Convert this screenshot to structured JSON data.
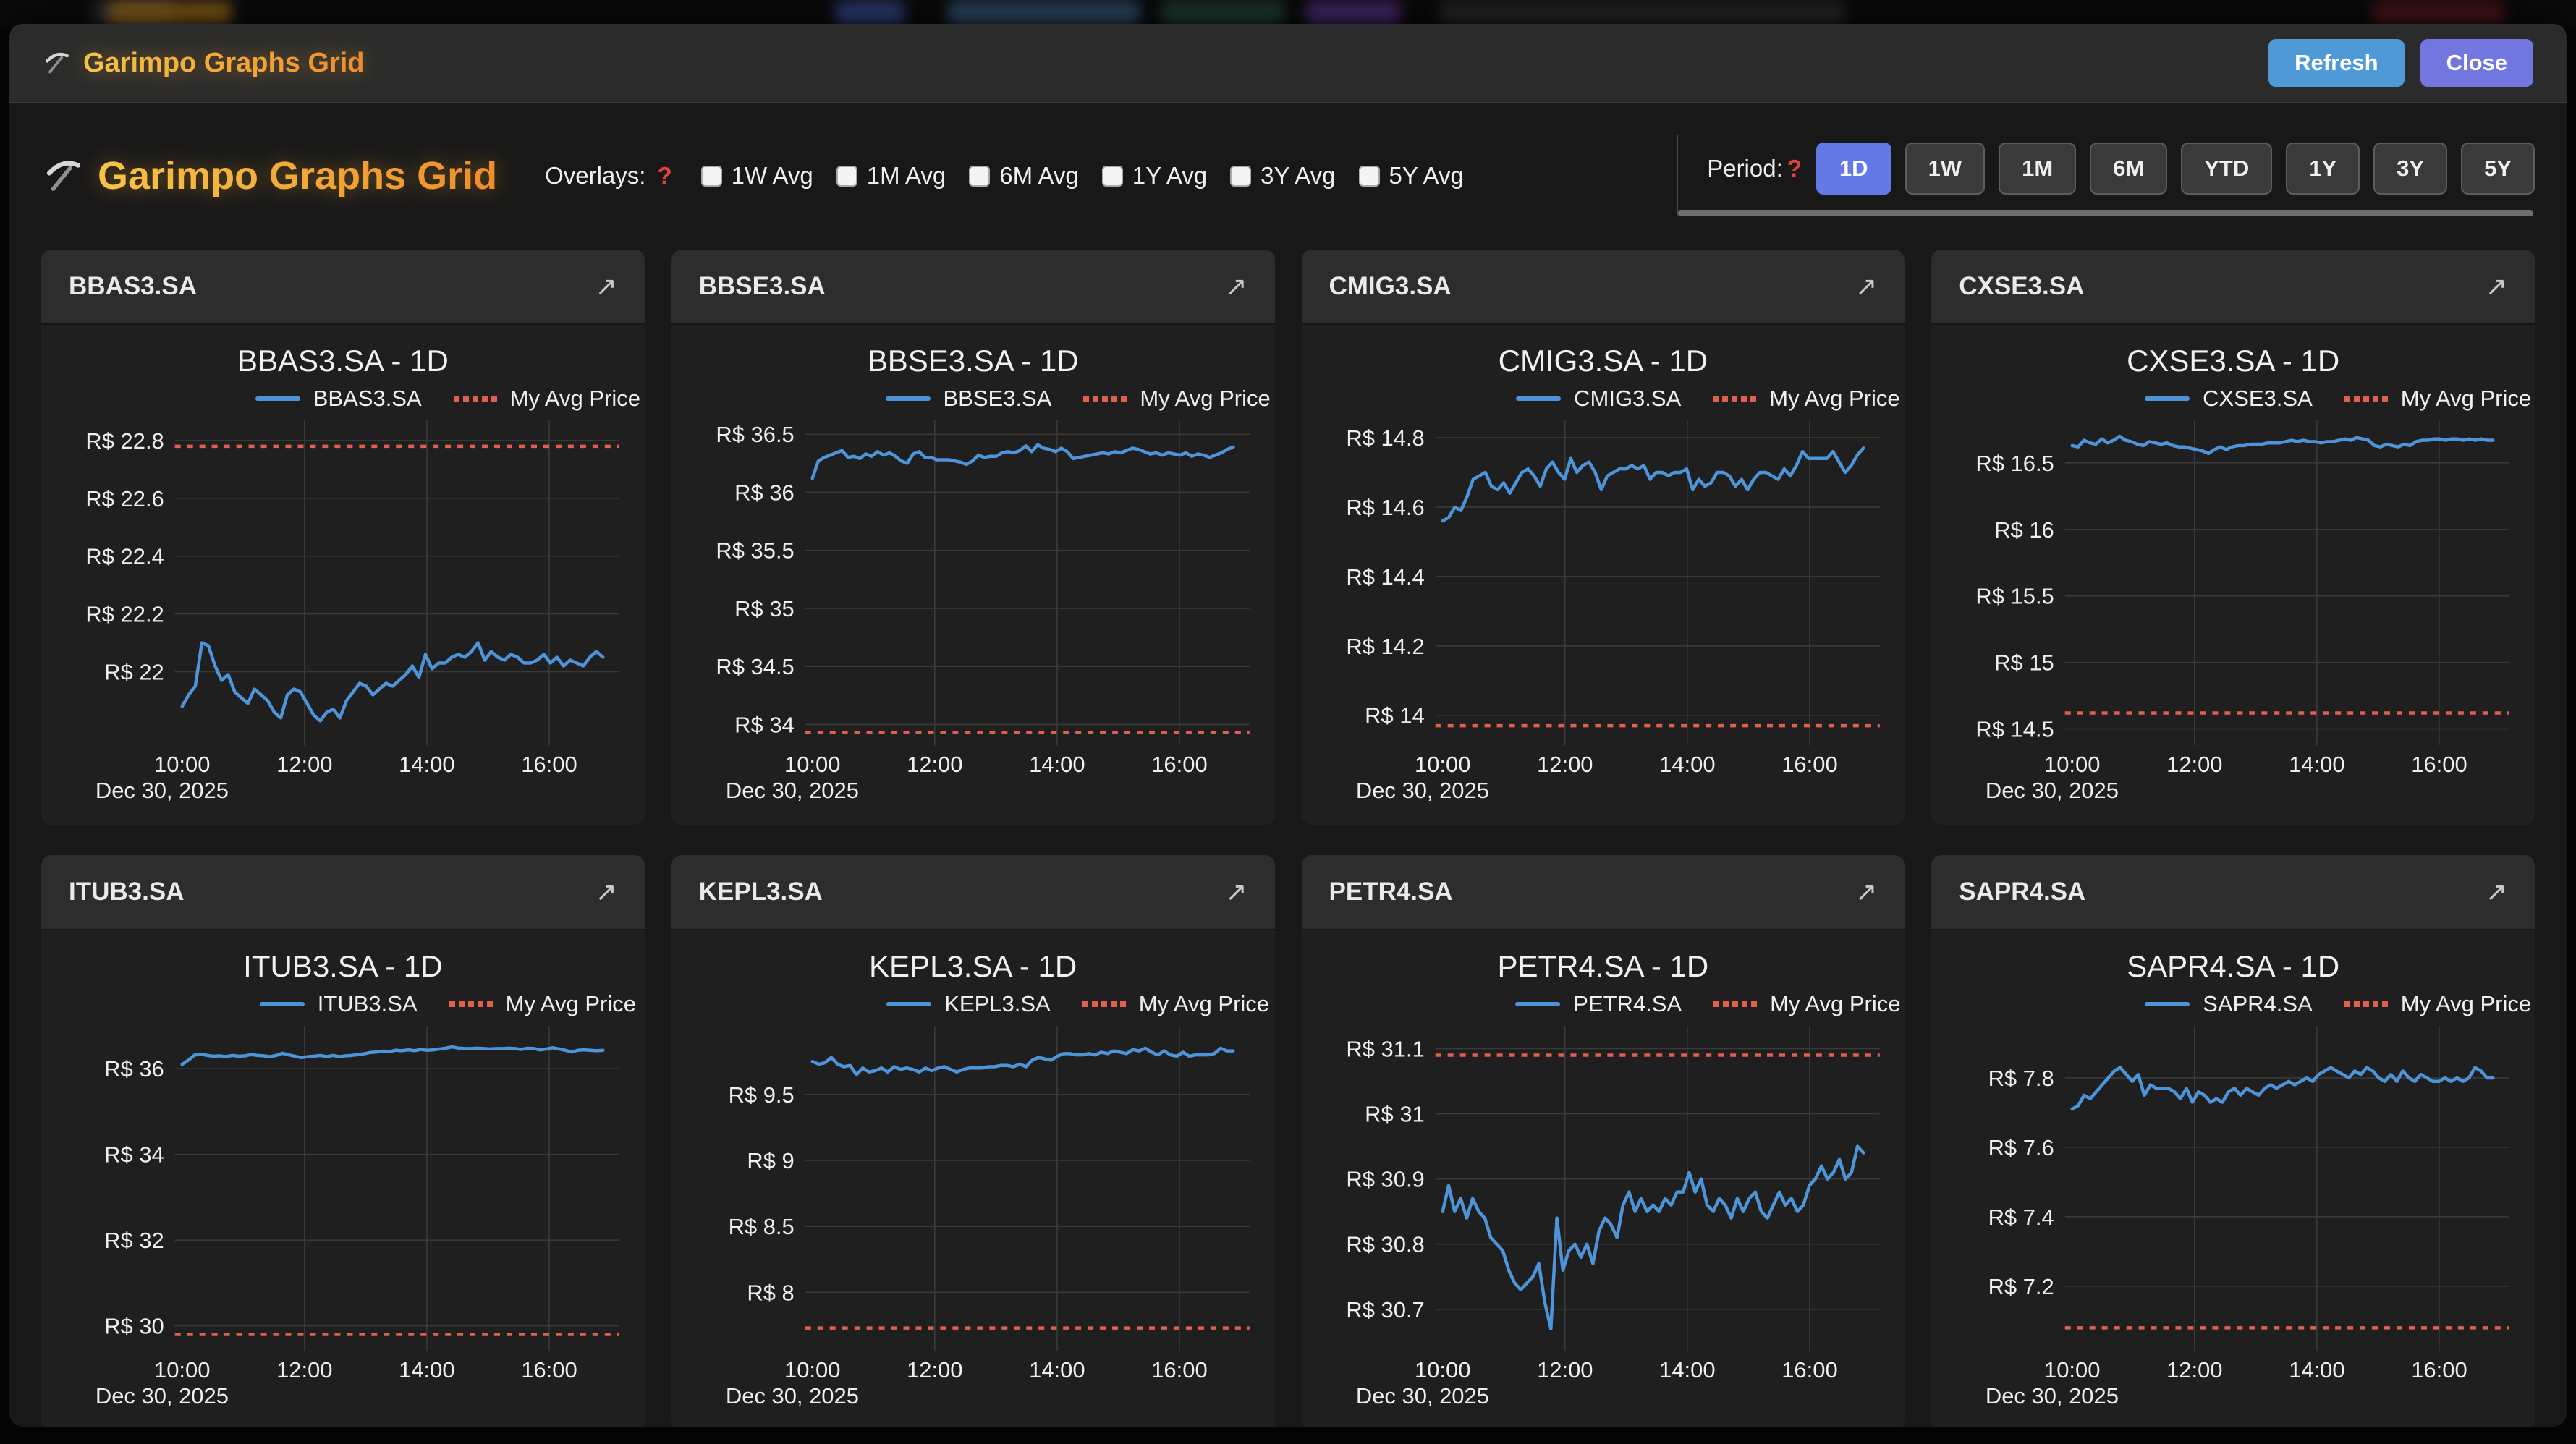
{
  "window": {
    "title": "Garimpo Graphs Grid",
    "buttons": {
      "refresh": "Refresh",
      "close": "Close"
    }
  },
  "toolbar": {
    "title": "Garimpo Graphs Grid",
    "overlays_label": "Overlays:",
    "overlays_help": "?",
    "overlays": [
      {
        "label": "1W Avg",
        "checked": false
      },
      {
        "label": "1M Avg",
        "checked": false
      },
      {
        "label": "6M Avg",
        "checked": false
      },
      {
        "label": "1Y Avg",
        "checked": false
      },
      {
        "label": "3Y Avg",
        "checked": false
      },
      {
        "label": "5Y Avg",
        "checked": false
      }
    ],
    "period_label": "Period:",
    "period_help": "?",
    "periods": [
      {
        "label": "1D",
        "active": true
      },
      {
        "label": "1W",
        "active": false
      },
      {
        "label": "1M",
        "active": false
      },
      {
        "label": "6M",
        "active": false
      },
      {
        "label": "YTD",
        "active": false
      },
      {
        "label": "1Y",
        "active": false
      },
      {
        "label": "3Y",
        "active": false
      },
      {
        "label": "5Y",
        "active": false
      }
    ]
  },
  "colors": {
    "series_blue": "#4e94d8",
    "avg_red": "#e0604d",
    "gridline": "#3a3a3a",
    "brand_orange_start": "#f6c445",
    "brand_orange_end": "#ee8d2b",
    "refresh_button": "#4f9ad6",
    "close_button": "#7276df",
    "active_period": "#6479e6"
  },
  "chart_data": [
    {
      "type": "line",
      "ticker": "BBAS3.SA",
      "title": "BBAS3.SA - 1D",
      "legend": {
        "series": "BBAS3.SA",
        "avg": "My Avg Price"
      },
      "x_ticks": [
        "10:00",
        "12:00",
        "14:00",
        "16:00"
      ],
      "x_date": "Dec 30, 2025",
      "x_range_hours": [
        10.0,
        16.88
      ],
      "y_ticks": [
        {
          "label": "R$ 22.8",
          "value": 22.8
        },
        {
          "label": "R$ 22.6",
          "value": 22.6
        },
        {
          "label": "R$ 22.4",
          "value": 22.4
        },
        {
          "label": "R$ 22.2",
          "value": 22.2
        },
        {
          "label": "R$ 22",
          "value": 22.0
        }
      ],
      "y_view": {
        "vmax": 22.87,
        "vmin": 21.765
      },
      "my_avg_price": 22.78,
      "values": [
        21.88,
        21.92,
        21.95,
        22.1,
        22.09,
        22.02,
        21.97,
        21.99,
        21.93,
        21.91,
        21.89,
        21.94,
        21.92,
        21.9,
        21.86,
        21.84,
        21.92,
        21.94,
        21.93,
        21.89,
        21.85,
        21.83,
        21.86,
        21.87,
        21.84,
        21.9,
        21.93,
        21.96,
        21.95,
        21.92,
        21.94,
        21.96,
        21.95,
        21.97,
        21.99,
        22.02,
        21.98,
        22.06,
        22.01,
        22.03,
        22.03,
        22.05,
        22.06,
        22.05,
        22.07,
        22.1,
        22.04,
        22.07,
        22.05,
        22.04,
        22.06,
        22.05,
        22.03,
        22.03,
        22.04,
        22.06,
        22.03,
        22.05,
        22.02,
        22.04,
        22.03,
        22.02,
        22.05,
        22.07,
        22.05
      ]
    },
    {
      "type": "line",
      "ticker": "BBSE3.SA",
      "title": "BBSE3.SA - 1D",
      "legend": {
        "series": "BBSE3.SA",
        "avg": "My Avg Price"
      },
      "x_ticks": [
        "10:00",
        "12:00",
        "14:00",
        "16:00"
      ],
      "x_date": "Dec 30, 2025",
      "x_range_hours": [
        10.0,
        16.88
      ],
      "y_ticks": [
        {
          "label": "R$ 36.5",
          "value": 36.5
        },
        {
          "label": "R$ 36",
          "value": 36.0
        },
        {
          "label": "R$ 35.5",
          "value": 35.5
        },
        {
          "label": "R$ 35",
          "value": 35.0
        },
        {
          "label": "R$ 34.5",
          "value": 34.5
        },
        {
          "label": "R$ 34",
          "value": 34.0
        }
      ],
      "y_view": {
        "vmax": 36.62,
        "vmin": 33.87
      },
      "my_avg_price": 33.93,
      "values": [
        36.12,
        36.27,
        36.3,
        36.32,
        36.34,
        36.36,
        36.3,
        36.31,
        36.29,
        36.33,
        36.31,
        36.35,
        36.32,
        36.34,
        36.31,
        36.27,
        36.25,
        36.33,
        36.35,
        36.3,
        36.3,
        36.28,
        36.28,
        36.28,
        36.27,
        36.26,
        36.24,
        36.27,
        36.32,
        36.3,
        36.31,
        36.31,
        36.34,
        36.35,
        36.34,
        36.36,
        36.4,
        36.35,
        36.41,
        36.38,
        36.37,
        36.35,
        36.38,
        36.35,
        36.29,
        36.3,
        36.31,
        36.32,
        36.33,
        36.34,
        36.33,
        36.35,
        36.34,
        36.36,
        36.38,
        36.37,
        36.35,
        36.33,
        36.34,
        36.32,
        36.34,
        36.33,
        36.32,
        36.34,
        36.31,
        36.33,
        36.32,
        36.3,
        36.32,
        36.34,
        36.37,
        36.39
      ]
    },
    {
      "type": "line",
      "ticker": "CMIG3.SA",
      "title": "CMIG3.SA - 1D",
      "legend": {
        "series": "CMIG3.SA",
        "avg": "My Avg Price"
      },
      "x_ticks": [
        "10:00",
        "12:00",
        "14:00",
        "16:00"
      ],
      "x_date": "Dec 30, 2025",
      "x_range_hours": [
        10.0,
        16.88
      ],
      "y_ticks": [
        {
          "label": "R$ 14.8",
          "value": 14.8
        },
        {
          "label": "R$ 14.6",
          "value": 14.6
        },
        {
          "label": "R$ 14.4",
          "value": 14.4
        },
        {
          "label": "R$ 14.2",
          "value": 14.2
        },
        {
          "label": "R$ 14",
          "value": 14.0
        }
      ],
      "y_view": {
        "vmax": 14.85,
        "vmin": 13.93
      },
      "my_avg_price": 13.97,
      "values": [
        14.56,
        14.57,
        14.6,
        14.59,
        14.63,
        14.68,
        14.69,
        14.7,
        14.66,
        14.65,
        14.67,
        14.64,
        14.67,
        14.7,
        14.71,
        14.69,
        14.66,
        14.71,
        14.73,
        14.7,
        14.68,
        14.74,
        14.7,
        14.72,
        14.73,
        14.7,
        14.65,
        14.69,
        14.7,
        14.71,
        14.71,
        14.72,
        14.71,
        14.72,
        14.68,
        14.7,
        14.7,
        14.69,
        14.7,
        14.7,
        14.71,
        14.65,
        14.68,
        14.66,
        14.67,
        14.7,
        14.7,
        14.69,
        14.66,
        14.68,
        14.65,
        14.68,
        14.7,
        14.7,
        14.69,
        14.68,
        14.71,
        14.69,
        14.72,
        14.76,
        14.74,
        14.74,
        14.74,
        14.74,
        14.76,
        14.73,
        14.7,
        14.72,
        14.75,
        14.77
      ]
    },
    {
      "type": "line",
      "ticker": "CXSE3.SA",
      "title": "CXSE3.SA - 1D",
      "legend": {
        "series": "CXSE3.SA",
        "avg": "My Avg Price"
      },
      "x_ticks": [
        "10:00",
        "12:00",
        "14:00",
        "16:00"
      ],
      "x_date": "Dec 30, 2025",
      "x_range_hours": [
        10.0,
        16.88
      ],
      "y_ticks": [
        {
          "label": "R$ 16.5",
          "value": 16.5
        },
        {
          "label": "R$ 16",
          "value": 16.0
        },
        {
          "label": "R$ 15.5",
          "value": 15.5
        },
        {
          "label": "R$ 15",
          "value": 15.0
        },
        {
          "label": "R$ 14.5",
          "value": 14.5
        }
      ],
      "y_view": {
        "vmax": 16.82,
        "vmin": 14.42
      },
      "my_avg_price": 14.62,
      "values": [
        16.63,
        16.62,
        16.67,
        16.65,
        16.64,
        16.68,
        16.65,
        16.67,
        16.7,
        16.67,
        16.66,
        16.64,
        16.63,
        16.66,
        16.65,
        16.64,
        16.65,
        16.63,
        16.62,
        16.62,
        16.61,
        16.6,
        16.59,
        16.57,
        16.6,
        16.62,
        16.6,
        16.62,
        16.63,
        16.63,
        16.64,
        16.64,
        16.64,
        16.65,
        16.65,
        16.65,
        16.66,
        16.67,
        16.66,
        16.67,
        16.66,
        16.66,
        16.65,
        16.66,
        16.66,
        16.67,
        16.68,
        16.67,
        16.69,
        16.68,
        16.67,
        16.63,
        16.62,
        16.64,
        16.63,
        16.62,
        16.64,
        16.63,
        16.66,
        16.67,
        16.67,
        16.68,
        16.68,
        16.67,
        16.68,
        16.68,
        16.67,
        16.68,
        16.67,
        16.68,
        16.67,
        16.67
      ]
    },
    {
      "type": "line",
      "ticker": "ITUB3.SA",
      "title": "ITUB3.SA - 1D",
      "legend": {
        "series": "ITUB3.SA",
        "avg": "My Avg Price"
      },
      "x_ticks": [
        "10:00",
        "12:00",
        "14:00",
        "16:00"
      ],
      "x_date": "Dec 30, 2025",
      "x_range_hours": [
        10.0,
        16.88
      ],
      "y_ticks": [
        {
          "label": "R$ 36",
          "value": 36.0
        },
        {
          "label": "R$ 34",
          "value": 34.0
        },
        {
          "label": "R$ 32",
          "value": 32.0
        },
        {
          "label": "R$ 30",
          "value": 30.0
        }
      ],
      "y_view": {
        "vmax": 37.0,
        "vmin": 29.55
      },
      "my_avg_price": 29.8,
      "values": [
        36.1,
        36.2,
        36.32,
        36.34,
        36.31,
        36.29,
        36.3,
        36.28,
        36.31,
        36.29,
        36.3,
        36.33,
        36.31,
        36.3,
        36.28,
        36.31,
        36.36,
        36.32,
        36.29,
        36.26,
        36.28,
        36.29,
        36.31,
        36.28,
        36.31,
        36.28,
        36.3,
        36.31,
        36.33,
        36.35,
        36.38,
        36.39,
        36.41,
        36.4,
        36.43,
        36.42,
        36.44,
        36.42,
        36.45,
        36.43,
        36.44,
        36.46,
        36.48,
        36.51,
        36.48,
        36.47,
        36.47,
        36.48,
        36.47,
        36.46,
        36.47,
        36.47,
        36.48,
        36.47,
        36.45,
        36.48,
        36.47,
        36.44,
        36.46,
        36.49,
        36.46,
        36.43,
        36.39,
        36.43,
        36.44,
        36.43,
        36.42,
        36.43
      ]
    },
    {
      "type": "line",
      "ticker": "KEPL3.SA",
      "title": "KEPL3.SA - 1D",
      "legend": {
        "series": "KEPL3.SA",
        "avg": "My Avg Price"
      },
      "x_ticks": [
        "10:00",
        "12:00",
        "14:00",
        "16:00"
      ],
      "x_date": "Dec 30, 2025",
      "x_range_hours": [
        10.0,
        16.88
      ],
      "y_ticks": [
        {
          "label": "R$ 9.5",
          "value": 9.5
        },
        {
          "label": "R$ 9",
          "value": 9.0
        },
        {
          "label": "R$ 8.5",
          "value": 8.5
        },
        {
          "label": "R$ 8",
          "value": 8.0
        }
      ],
      "y_view": {
        "vmax": 10.02,
        "vmin": 7.6
      },
      "my_avg_price": 7.73,
      "values": [
        9.75,
        9.73,
        9.74,
        9.78,
        9.73,
        9.71,
        9.72,
        9.65,
        9.7,
        9.67,
        9.68,
        9.7,
        9.67,
        9.71,
        9.69,
        9.7,
        9.69,
        9.67,
        9.7,
        9.68,
        9.7,
        9.71,
        9.69,
        9.67,
        9.69,
        9.7,
        9.7,
        9.7,
        9.71,
        9.71,
        9.72,
        9.72,
        9.71,
        9.73,
        9.71,
        9.76,
        9.78,
        9.77,
        9.76,
        9.79,
        9.81,
        9.81,
        9.8,
        9.8,
        9.81,
        9.8,
        9.82,
        9.81,
        9.83,
        9.82,
        9.81,
        9.84,
        9.83,
        9.85,
        9.82,
        9.8,
        9.83,
        9.8,
        9.79,
        9.82,
        9.79,
        9.8,
        9.8,
        9.8,
        9.81,
        9.85,
        9.83,
        9.83
      ]
    },
    {
      "type": "line",
      "ticker": "PETR4.SA",
      "title": "PETR4.SA - 1D",
      "legend": {
        "series": "PETR4.SA",
        "avg": "My Avg Price"
      },
      "x_ticks": [
        "10:00",
        "12:00",
        "14:00",
        "16:00"
      ],
      "x_date": "Dec 30, 2025",
      "x_range_hours": [
        10.0,
        16.88
      ],
      "y_ticks": [
        {
          "label": "R$ 31.1",
          "value": 31.1
        },
        {
          "label": "R$ 31",
          "value": 31.0
        },
        {
          "label": "R$ 30.9",
          "value": 30.9
        },
        {
          "label": "R$ 30.8",
          "value": 30.8
        },
        {
          "label": "R$ 30.7",
          "value": 30.7
        }
      ],
      "y_view": {
        "vmax": 31.135,
        "vmin": 30.645
      },
      "my_avg_price": 31.09,
      "values": [
        30.85,
        30.89,
        30.85,
        30.87,
        30.84,
        30.87,
        30.85,
        30.84,
        30.81,
        30.8,
        30.79,
        30.76,
        30.74,
        30.73,
        30.74,
        30.75,
        30.77,
        30.71,
        30.67,
        30.84,
        30.76,
        30.79,
        30.8,
        30.78,
        30.8,
        30.77,
        30.82,
        30.84,
        30.83,
        30.81,
        30.86,
        30.88,
        30.85,
        30.87,
        30.85,
        30.86,
        30.85,
        30.87,
        30.86,
        30.88,
        30.88,
        30.91,
        30.88,
        30.9,
        30.86,
        30.85,
        30.87,
        30.86,
        30.84,
        30.87,
        30.85,
        30.87,
        30.88,
        30.85,
        30.84,
        30.86,
        30.88,
        30.86,
        30.87,
        30.85,
        30.86,
        30.89,
        30.9,
        30.92,
        30.9,
        30.91,
        30.93,
        30.9,
        30.91,
        30.95,
        30.94
      ]
    },
    {
      "type": "line",
      "ticker": "SAPR4.SA",
      "title": "SAPR4.SA - 1D",
      "legend": {
        "series": "SAPR4.SA",
        "avg": "My Avg Price"
      },
      "x_ticks": [
        "10:00",
        "12:00",
        "14:00",
        "16:00"
      ],
      "x_date": "Dec 30, 2025",
      "x_range_hours": [
        10.0,
        16.88
      ],
      "y_ticks": [
        {
          "label": "R$ 7.8",
          "value": 7.8
        },
        {
          "label": "R$ 7.6",
          "value": 7.6
        },
        {
          "label": "R$ 7.4",
          "value": 7.4
        },
        {
          "label": "R$ 7.2",
          "value": 7.2
        }
      ],
      "y_view": {
        "vmax": 7.95,
        "vmin": 7.03
      },
      "my_avg_price": 7.08,
      "values": [
        7.71,
        7.72,
        7.75,
        7.74,
        7.76,
        7.78,
        7.8,
        7.82,
        7.83,
        7.81,
        7.79,
        7.81,
        7.75,
        7.78,
        7.77,
        7.77,
        7.77,
        7.76,
        7.74,
        7.77,
        7.73,
        7.76,
        7.75,
        7.73,
        7.74,
        7.73,
        7.76,
        7.77,
        7.75,
        7.77,
        7.76,
        7.75,
        7.77,
        7.78,
        7.77,
        7.78,
        7.79,
        7.78,
        7.79,
        7.8,
        7.79,
        7.81,
        7.82,
        7.83,
        7.82,
        7.81,
        7.8,
        7.82,
        7.81,
        7.83,
        7.82,
        7.8,
        7.79,
        7.81,
        7.79,
        7.82,
        7.8,
        7.79,
        7.81,
        7.8,
        7.79,
        7.79,
        7.8,
        7.79,
        7.8,
        7.79,
        7.8,
        7.83,
        7.82,
        7.8,
        7.8
      ]
    }
  ]
}
